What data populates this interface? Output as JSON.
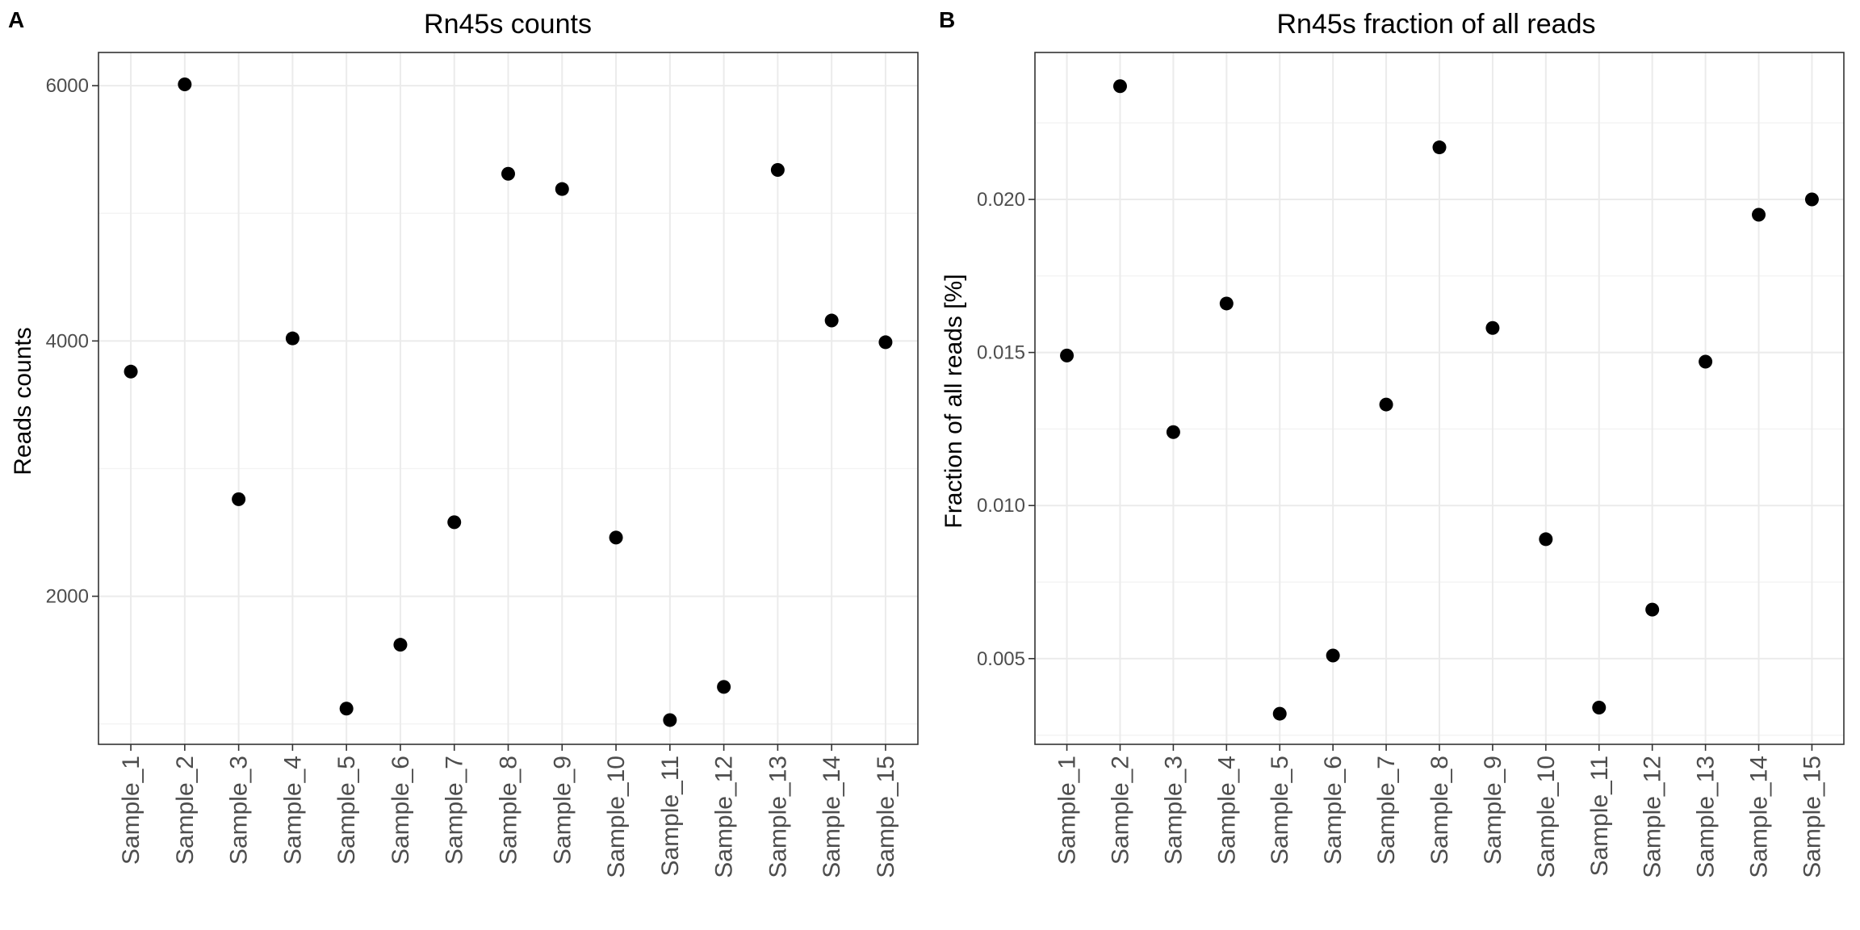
{
  "chart_data": [
    {
      "type": "scatter",
      "panel_label": "A",
      "title": "Rn45s counts",
      "xlabel": "",
      "ylabel": "Reads counts",
      "categories": [
        "Sample_1",
        "Sample_2",
        "Sample_3",
        "Sample_4",
        "Sample_5",
        "Sample_6",
        "Sample_7",
        "Sample_8",
        "Sample_9",
        "Sample_10",
        "Sample_11",
        "Sample_12",
        "Sample_13",
        "Sample_14",
        "Sample_15"
      ],
      "values": [
        3760,
        6010,
        2760,
        4020,
        1120,
        1620,
        2580,
        5310,
        5190,
        2460,
        1030,
        1290,
        5340,
        4160,
        3990
      ],
      "ylim": [
        840,
        6260
      ],
      "yticks": [
        2000,
        4000,
        6000
      ],
      "ytick_labels": [
        "2000",
        "4000",
        "6000"
      ],
      "grid": true,
      "point_color": "#000000"
    },
    {
      "type": "scatter",
      "panel_label": "B",
      "title": "Rn45s fraction of all reads",
      "xlabel": "",
      "ylabel": "Fraction of all reads [%]",
      "categories": [
        "Sample_1",
        "Sample_2",
        "Sample_3",
        "Sample_4",
        "Sample_5",
        "Sample_6",
        "Sample_7",
        "Sample_8",
        "Sample_9",
        "Sample_10",
        "Sample_11",
        "Sample_12",
        "Sample_13",
        "Sample_14",
        "Sample_15"
      ],
      "values": [
        0.0149,
        0.0237,
        0.0124,
        0.0166,
        0.0032,
        0.0051,
        0.0133,
        0.0217,
        0.0158,
        0.0089,
        0.0034,
        0.0066,
        0.0147,
        0.0195,
        0.02
      ],
      "ylim": [
        0.0022,
        0.0248
      ],
      "yticks": [
        0.005,
        0.01,
        0.015,
        0.02
      ],
      "ytick_labels": [
        "0.005",
        "0.010",
        "0.015",
        "0.020"
      ],
      "grid": true,
      "point_color": "#000000"
    }
  ]
}
